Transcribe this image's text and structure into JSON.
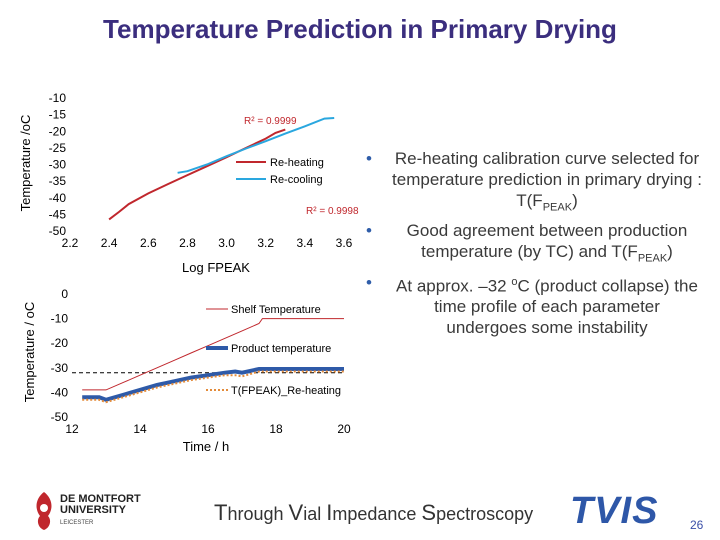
{
  "title": "Temperature Prediction in Primary Drying",
  "chart_data": [
    {
      "type": "line",
      "title": "",
      "xlabel": "Log FPEAK",
      "ylabel": "Temperature /oC",
      "xlim": [
        2.2,
        3.6
      ],
      "ylim": [
        -50,
        -10
      ],
      "xticks": [
        "2.2",
        "2.4",
        "2.6",
        "2.8",
        "3.0",
        "3.2",
        "3.4",
        "3.6"
      ],
      "yticks": [
        "-10",
        "-15",
        "-20",
        "-25",
        "-30",
        "-35",
        "-40",
        "-45",
        "-50"
      ],
      "series": [
        {
          "name": "Re-heating",
          "color": "#c0272d",
          "x": [
            2.4,
            2.45,
            2.5,
            2.6,
            2.7,
            2.8,
            2.9,
            3.0,
            3.1,
            3.2,
            3.25,
            3.3
          ],
          "y": [
            -46.5,
            -44.3,
            -41.9,
            -38.7,
            -35.9,
            -33.2,
            -30.5,
            -27.8,
            -25,
            -22.2,
            -20.5,
            -19.5
          ]
        },
        {
          "name": "Re-cooling",
          "color": "#2aa7df",
          "x": [
            2.75,
            2.8,
            2.9,
            3.0,
            3.1,
            3.2,
            3.3,
            3.4,
            3.5,
            3.55
          ],
          "y": [
            -32.5,
            -32.0,
            -30.0,
            -27.5,
            -25.2,
            -23.0,
            -20.7,
            -18.5,
            -16.2,
            -16.0
          ]
        }
      ],
      "annotations": [
        "R² = 0.9999",
        "R² = 0.9998"
      ]
    },
    {
      "type": "line",
      "title": "",
      "xlabel": "Time / h",
      "ylabel": "Temperature / oC",
      "xlim": [
        12,
        20
      ],
      "ylim": [
        -50,
        0
      ],
      "xticks": [
        "12",
        "14",
        "16",
        "18",
        "20"
      ],
      "yticks": [
        "0",
        "-10",
        "-20",
        "-30",
        "-40",
        "-50"
      ],
      "series": [
        {
          "name": "Shelf Temperature",
          "color": "#c0272d",
          "x": [
            12.3,
            12.6,
            13.0,
            13.5,
            14.0,
            14.5,
            15.0,
            15.5,
            16.0,
            16.5,
            17.0,
            17.5,
            17.6,
            18.0,
            19.0,
            20.0
          ],
          "y": [
            -39,
            -39,
            -39,
            -36,
            -33,
            -30,
            -27,
            -24,
            -21,
            -18,
            -15,
            -12,
            -10,
            -10,
            -10,
            -10
          ]
        },
        {
          "name": "Product temperature",
          "color": "#2e5aa8",
          "x": [
            12.3,
            12.8,
            13.0,
            13.5,
            14.0,
            14.5,
            15.0,
            15.5,
            16.0,
            16.5,
            16.8,
            17.0,
            17.5,
            18.0,
            19.0,
            20.0
          ],
          "y": [
            -42,
            -42,
            -43,
            -41,
            -39,
            -37,
            -35.5,
            -34,
            -33,
            -32,
            -31.5,
            -32,
            -30.5,
            -30.5,
            -30.5,
            -30.5
          ]
        },
        {
          "name": "T(FPEAK)_Re-heating",
          "color": "#e38b3a",
          "x": [
            12.3,
            12.8,
            13.0,
            13.5,
            14.0,
            14.5,
            15.0,
            15.5,
            16.0,
            16.5,
            16.8,
            17.0,
            17.5,
            18.0,
            19.0,
            20.0
          ],
          "y": [
            -43,
            -43,
            -44,
            -42,
            -40,
            -38,
            -36.5,
            -35,
            -34,
            -33,
            -33,
            -33.5,
            -31.5,
            -31.5,
            -31.5,
            -31.5
          ]
        }
      ],
      "reference_line": -32
    }
  ],
  "bullets": [
    {
      "text": "Re-heating calibration curve selected for temperature prediction in primary drying : T(F",
      "sub": "PEAK",
      "tail": ")"
    },
    {
      "text": "Good agreement between production temperature (by TC) and T(F",
      "sub": "PEAK",
      "tail": ")"
    },
    {
      "text_a": "At approx. –32 ",
      "sup": "o",
      "text_b": "C (product collapse) the time profile of each parameter undergoes some instability"
    }
  ],
  "footer": {
    "tagline_parts": [
      "T",
      "hrough ",
      "V",
      "ial ",
      "I",
      "mpedance ",
      "S",
      "pectroscopy"
    ],
    "logo_left_name_1": "DE MONTFORT",
    "logo_left_name_2": "UNIVERSITY",
    "logo_left_sub": "LEICESTER",
    "logo_right": "TVIS",
    "page_number": "26"
  },
  "colors": {
    "title": "#3b2e7e",
    "bullet": "#2f5da9"
  }
}
